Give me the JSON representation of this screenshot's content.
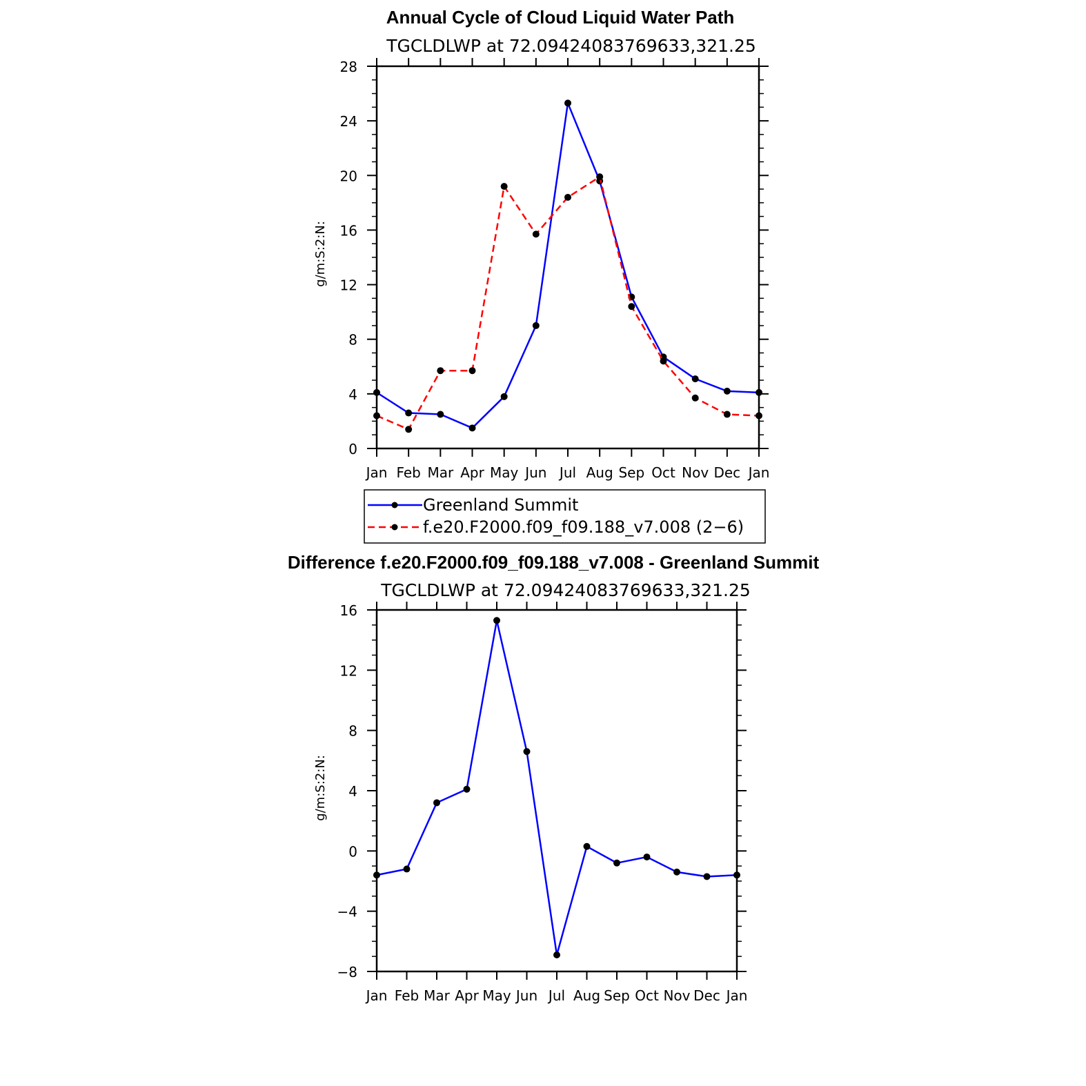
{
  "chart_data": [
    {
      "type": "line",
      "title": "Annual Cycle of Cloud Liquid Water Path",
      "subtitle": "TGCLDLWP  at  72.09424083769633,321.25",
      "xlabel": "",
      "ylabel": "g/m:S:2:N:",
      "categories": [
        "Jan",
        "Feb",
        "Mar",
        "Apr",
        "May",
        "Jun",
        "Jul",
        "Aug",
        "Sep",
        "Oct",
        "Nov",
        "Dec",
        "Jan"
      ],
      "ylim": [
        0,
        28
      ],
      "yticks": [
        "0",
        "4",
        "8",
        "12",
        "16",
        "20",
        "24",
        "28"
      ],
      "grid": false,
      "legend_position": "bottom",
      "series": [
        {
          "name": "Greenland Summit",
          "color": "#0000ff",
          "dash": "solid",
          "values": [
            4.1,
            2.6,
            2.5,
            1.5,
            3.8,
            9.0,
            25.3,
            19.6,
            11.1,
            6.7,
            5.1,
            4.2,
            4.1
          ]
        },
        {
          "name": "f.e20.F2000.f09_f09.188_v7.008 (2−6)",
          "color": "#ff0000",
          "dash": "dashed",
          "values": [
            2.4,
            1.4,
            5.7,
            5.7,
            19.2,
            15.7,
            18.4,
            19.9,
            10.4,
            6.4,
            3.7,
            2.5,
            2.4
          ]
        }
      ]
    },
    {
      "type": "line",
      "title": "Difference f.e20.F2000.f09_f09.188_v7.008 - Greenland Summit",
      "subtitle": "TGCLDLWP  at  72.09424083769633,321.25",
      "xlabel": "",
      "ylabel": "g/m:S:2:N:",
      "categories": [
        "Jan",
        "Feb",
        "Mar",
        "Apr",
        "May",
        "Jun",
        "Jul",
        "Aug",
        "Sep",
        "Oct",
        "Nov",
        "Dec",
        "Jan"
      ],
      "ylim": [
        -8,
        16
      ],
      "yticks": [
        "−8",
        "−4",
        "0",
        "4",
        "8",
        "12",
        "16"
      ],
      "grid": false,
      "series": [
        {
          "color": "#0000ff",
          "dash": "solid",
          "values": [
            -1.6,
            -1.2,
            3.2,
            4.1,
            15.3,
            6.6,
            -6.9,
            0.3,
            -0.8,
            -0.4,
            -1.4,
            -1.7,
            -1.6
          ]
        }
      ]
    }
  ]
}
